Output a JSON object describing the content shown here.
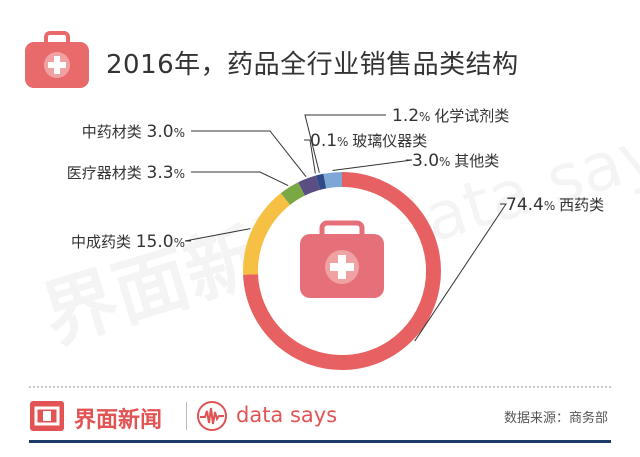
{
  "title": "2016年，药品全行业销售品类结构",
  "watermark": {
    "left": "界面新闻",
    "right": "data says"
  },
  "footer": {
    "brand": "界面新闻",
    "datasays": "data says",
    "source": "数据来源：商务部"
  },
  "colors": {
    "accent": "#e86a6a",
    "ring_inner": "#e5707a",
    "footer_bar": "#1e3b6b"
  },
  "chart_data": {
    "type": "pie",
    "donut": true,
    "title": "2016年，药品全行业销售品类结构",
    "unit": "%",
    "slices": [
      {
        "name": "西药类",
        "value": 74.4,
        "label": "74.4",
        "color": "#e86162"
      },
      {
        "name": "中成药类",
        "value": 15.0,
        "label": "15.0",
        "color": "#f5c043"
      },
      {
        "name": "医疗器材类",
        "value": 3.3,
        "label": "3.3",
        "color": "#7aa844"
      },
      {
        "name": "中药材类",
        "value": 3.0,
        "label": "3.0",
        "color": "#5a4e82"
      },
      {
        "name": "玻璃仪器类",
        "value": 0.1,
        "label": "0.1",
        "color": "#2f3f63"
      },
      {
        "name": "化学试剂类",
        "value": 1.2,
        "label": "1.2",
        "color": "#2f4a87"
      },
      {
        "name": "其他类",
        "value": 3.0,
        "label": "3.0",
        "color": "#7da7d6"
      }
    ]
  }
}
